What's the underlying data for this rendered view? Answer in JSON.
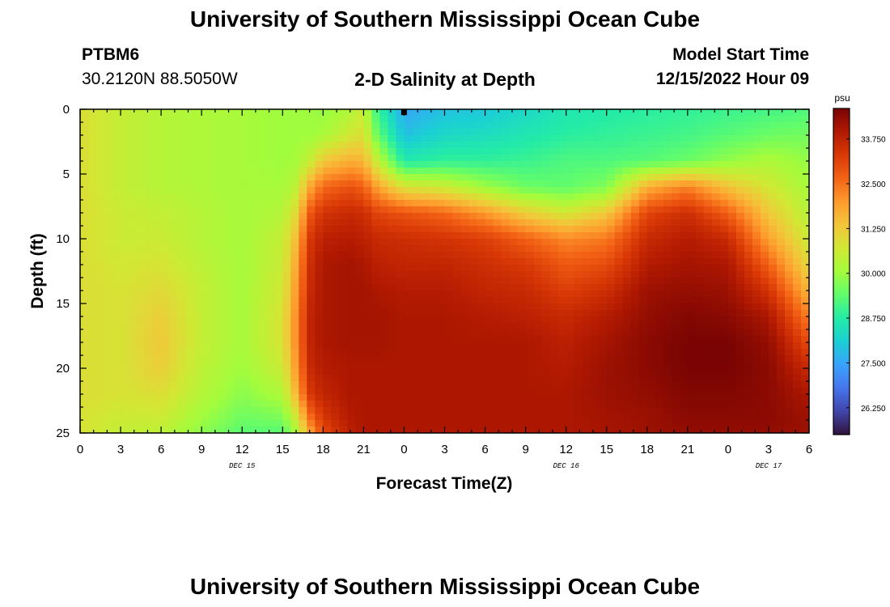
{
  "page": {
    "title_top": "University of Southern Mississippi Ocean Cube",
    "title_bottom": "University of Southern Mississippi Ocean Cube",
    "station_id": "PTBM6",
    "station_coords": "30.2120N  88.5050W",
    "plot_subtitle": "2-D Salinity at Depth",
    "model_start_label": "Model Start Time",
    "model_start_value": "12/15/2022 Hour 09"
  },
  "colors": {
    "stops": [
      "#30123b",
      "#4145ab",
      "#4675ed",
      "#39a2fc",
      "#1bcfd4",
      "#24eca6",
      "#61fc6c",
      "#a4fc3b",
      "#d1e834",
      "#f3c63a",
      "#fe9b2d",
      "#f36315",
      "#d93806",
      "#b11901",
      "#7a0403"
    ]
  },
  "chart_data": {
    "type": "heatmap",
    "title": "2-D Salinity at Depth",
    "xlabel": "Forecast Time(Z)",
    "ylabel": "Depth (ft)",
    "x_range_hours": [
      0,
      54
    ],
    "ylim": [
      0,
      25
    ],
    "y_inverted": true,
    "x_ticks": [
      {
        "hour": 0,
        "label": "0"
      },
      {
        "hour": 3,
        "label": "3"
      },
      {
        "hour": 6,
        "label": "6"
      },
      {
        "hour": 9,
        "label": "9"
      },
      {
        "hour": 12,
        "label": "12"
      },
      {
        "hour": 15,
        "label": "15"
      },
      {
        "hour": 18,
        "label": "18"
      },
      {
        "hour": 21,
        "label": "21"
      },
      {
        "hour": 24,
        "label": "0"
      },
      {
        "hour": 27,
        "label": "3"
      },
      {
        "hour": 30,
        "label": "6"
      },
      {
        "hour": 33,
        "label": "9"
      },
      {
        "hour": 36,
        "label": "12"
      },
      {
        "hour": 39,
        "label": "15"
      },
      {
        "hour": 42,
        "label": "18"
      },
      {
        "hour": 45,
        "label": "21"
      },
      {
        "hour": 48,
        "label": "0"
      },
      {
        "hour": 51,
        "label": "3"
      },
      {
        "hour": 54,
        "label": "6"
      }
    ],
    "y_ticks": [
      0,
      5,
      10,
      15,
      20,
      25
    ],
    "date_labels": [
      {
        "hour": 12,
        "label": "DEC 15"
      },
      {
        "hour": 36,
        "label": "DEC 16"
      },
      {
        "hour": 51,
        "label": "DEC 17"
      }
    ],
    "colorbar": {
      "unit": "psu",
      "min": 25.5,
      "max": 34.6,
      "ticks": [
        "26.250",
        "27.500",
        "28.750",
        "30.000",
        "31.250",
        "32.500",
        "33.750"
      ],
      "tick_values": [
        26.25,
        27.5,
        28.75,
        30.0,
        31.25,
        32.5,
        33.75
      ]
    },
    "marker": {
      "hour": 24,
      "depth": 0.2
    },
    "salinity_profiles_psu": {
      "depths_ft": [
        0,
        2,
        4,
        6,
        8,
        10,
        12,
        14,
        16,
        18,
        20,
        22,
        24,
        25
      ],
      "hours": [
        0,
        3,
        6,
        9,
        12,
        15,
        16,
        17,
        18,
        20,
        21,
        22,
        24,
        27,
        30,
        33,
        36,
        39,
        42,
        45,
        48,
        51,
        54
      ],
      "values": [
        [
          30.9,
          30.9,
          30.9,
          30.9,
          30.9,
          30.9,
          30.9,
          30.9,
          30.9,
          30.9,
          30.9,
          30.9,
          30.8,
          30.8
        ],
        [
          30.5,
          30.5,
          30.5,
          30.5,
          30.6,
          30.6,
          30.7,
          30.8,
          30.8,
          30.8,
          30.8,
          30.8,
          30.6,
          30.5
        ],
        [
          30.3,
          30.3,
          30.3,
          30.3,
          30.5,
          30.6,
          30.8,
          31.0,
          31.2,
          31.3,
          31.2,
          30.9,
          30.6,
          30.4
        ],
        [
          30.2,
          30.2,
          30.2,
          30.2,
          30.3,
          30.3,
          30.4,
          30.5,
          30.5,
          30.5,
          30.4,
          30.3,
          30.0,
          29.8
        ],
        [
          30.1,
          30.1,
          30.1,
          30.1,
          30.1,
          30.1,
          30.1,
          30.1,
          30.1,
          30.1,
          30.0,
          29.8,
          29.5,
          29.3
        ],
        [
          30.0,
          30.0,
          30.0,
          30.1,
          30.3,
          30.5,
          30.6,
          30.7,
          30.8,
          30.8,
          30.6,
          30.2,
          29.6,
          29.3
        ],
        [
          30.0,
          30.0,
          30.1,
          30.4,
          31.0,
          31.5,
          31.8,
          32.0,
          32.2,
          32.2,
          32.0,
          31.6,
          30.6,
          30.1
        ],
        [
          30.0,
          30.0,
          30.5,
          31.8,
          32.8,
          33.3,
          33.5,
          33.6,
          33.7,
          33.7,
          33.6,
          33.3,
          32.4,
          31.8
        ],
        [
          29.9,
          30.1,
          31.3,
          32.6,
          33.4,
          33.8,
          34.0,
          34.0,
          34.0,
          34.0,
          33.9,
          33.7,
          33.3,
          33.0
        ],
        [
          30.2,
          30.7,
          31.7,
          32.9,
          33.6,
          33.9,
          34.1,
          34.1,
          34.1,
          34.1,
          34.0,
          34.0,
          33.9,
          33.8
        ],
        [
          30.6,
          30.9,
          31.6,
          32.7,
          33.5,
          33.8,
          34.0,
          34.1,
          34.1,
          34.1,
          34.0,
          34.0,
          34.0,
          34.0
        ],
        [
          29.0,
          29.5,
          30.5,
          31.9,
          33.1,
          33.6,
          33.8,
          34.0,
          34.1,
          34.1,
          34.0,
          34.0,
          34.0,
          34.0
        ],
        [
          27.5,
          27.9,
          28.7,
          30.8,
          32.9,
          33.5,
          33.7,
          33.9,
          34.0,
          34.0,
          34.0,
          34.0,
          34.0,
          34.0
        ],
        [
          27.9,
          28.3,
          28.9,
          30.6,
          32.6,
          33.4,
          33.7,
          33.9,
          34.0,
          34.0,
          34.0,
          34.0,
          34.0,
          34.0
        ],
        [
          28.0,
          28.4,
          28.9,
          30.0,
          32.0,
          33.2,
          33.5,
          33.7,
          33.9,
          34.0,
          34.0,
          34.0,
          34.0,
          34.0
        ],
        [
          28.3,
          28.6,
          29.0,
          29.5,
          31.2,
          32.7,
          33.3,
          33.6,
          33.8,
          34.0,
          34.0,
          34.0,
          34.0,
          34.0
        ],
        [
          28.6,
          28.8,
          29.2,
          29.4,
          30.7,
          32.2,
          32.8,
          33.2,
          33.6,
          33.8,
          33.9,
          34.0,
          34.0,
          34.0
        ],
        [
          28.7,
          28.9,
          29.2,
          29.7,
          31.3,
          32.4,
          33.0,
          33.5,
          33.9,
          34.1,
          34.2,
          34.2,
          34.1,
          34.1
        ],
        [
          28.8,
          29.0,
          29.3,
          31.7,
          33.1,
          33.6,
          33.9,
          34.2,
          34.3,
          34.4,
          34.4,
          34.3,
          34.2,
          34.2
        ],
        [
          28.9,
          29.1,
          29.5,
          32.3,
          33.5,
          33.9,
          34.1,
          34.3,
          34.5,
          34.6,
          34.6,
          34.5,
          34.4,
          34.3
        ],
        [
          29.0,
          29.3,
          29.9,
          31.4,
          32.7,
          33.6,
          34.0,
          34.2,
          34.4,
          34.6,
          34.6,
          34.5,
          34.4,
          34.3
        ],
        [
          29.1,
          29.5,
          30.2,
          30.7,
          31.3,
          31.9,
          32.7,
          33.4,
          34.0,
          34.3,
          34.4,
          34.4,
          34.4,
          34.3
        ],
        [
          29.2,
          29.6,
          29.9,
          30.1,
          30.3,
          30.6,
          31.0,
          31.6,
          32.3,
          33.0,
          33.6,
          34.0,
          34.2,
          34.2
        ]
      ]
    }
  }
}
